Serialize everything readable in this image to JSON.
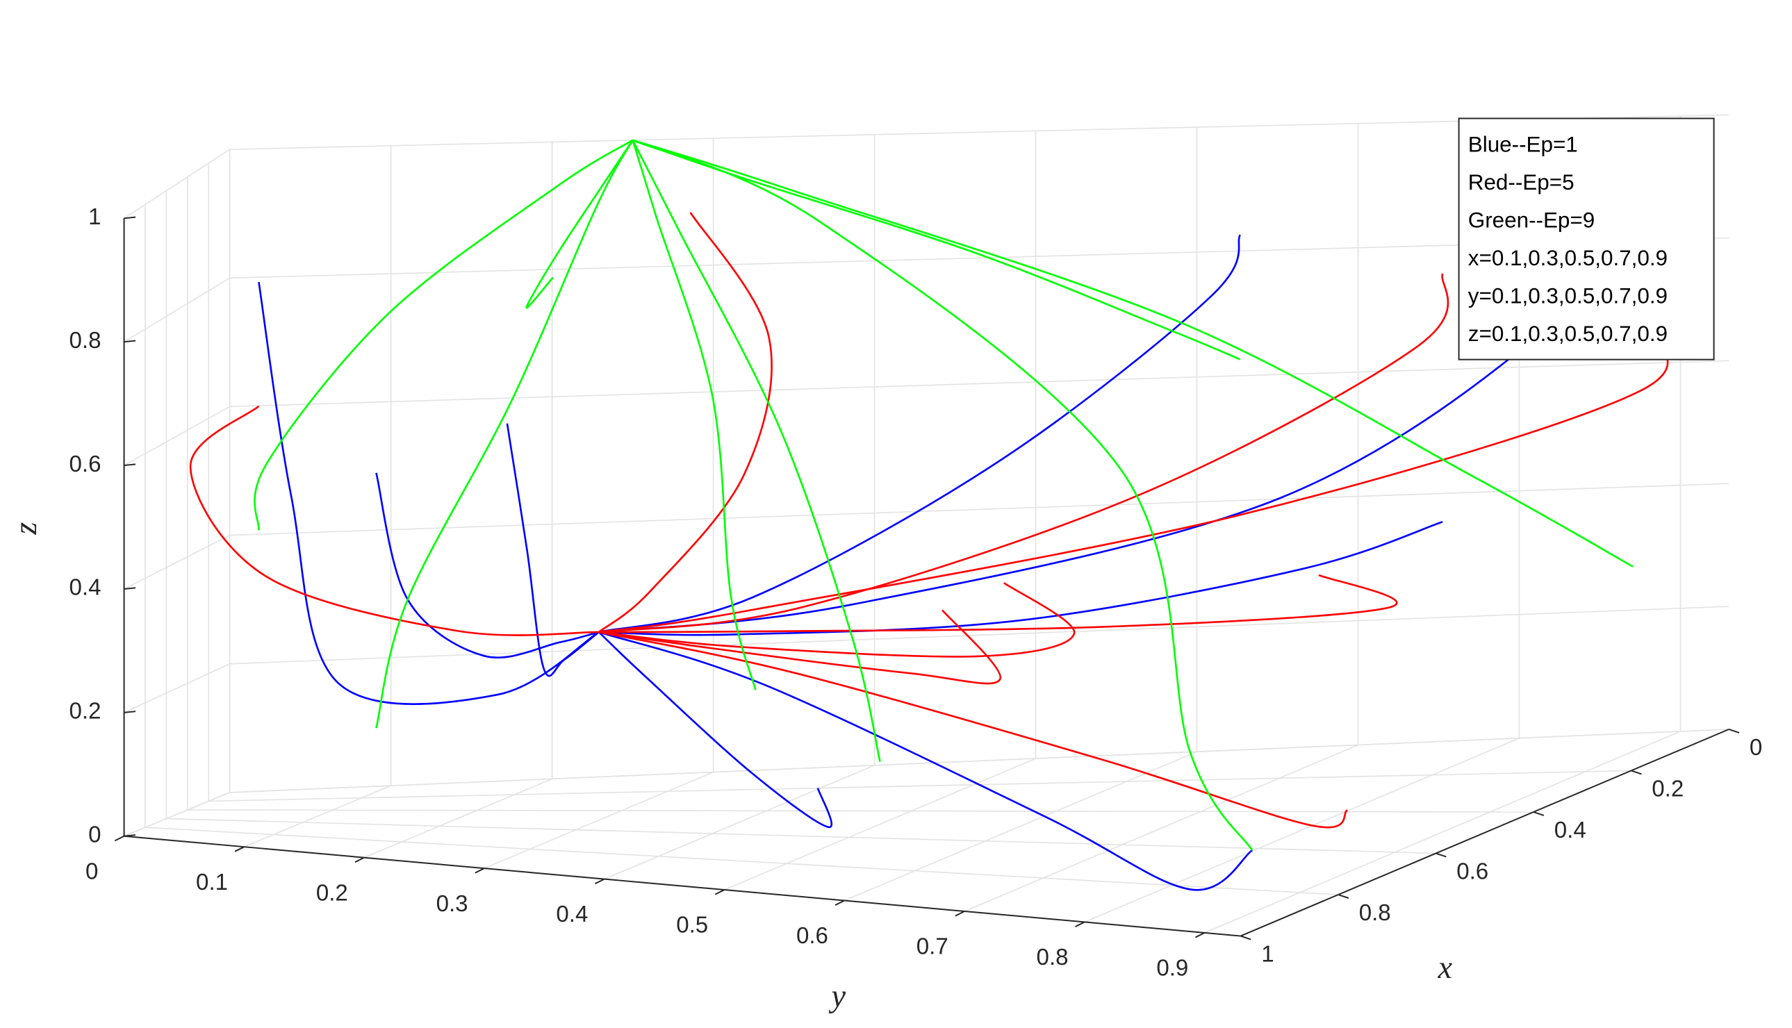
{
  "chart_data": {
    "type": "line3d",
    "xlabel": "x",
    "ylabel": "y",
    "zlabel": "z",
    "xlim": [
      0,
      1
    ],
    "ylim": [
      0,
      0.93
    ],
    "zlim": [
      0,
      1
    ],
    "xticks": [
      0,
      0.2,
      0.4,
      0.6,
      0.8,
      1
    ],
    "yticks": [
      0,
      0.1,
      0.2,
      0.3,
      0.4,
      0.5,
      0.6,
      0.7,
      0.8,
      0.9
    ],
    "zticks": [
      0,
      0.2,
      0.4,
      0.6,
      0.8,
      1
    ],
    "grid": true,
    "legend": "northeast",
    "series": [
      {
        "name": "Blue--Ep=1",
        "color": "#0000ff",
        "lines": [
          {
            "x": [
              0.9,
              0.85,
              0.8,
              0.65,
              0.5
            ],
            "y": [
              0.1,
              0.12,
              0.15,
              0.25,
              0.3
            ],
            "z": [
              0.9,
              0.55,
              0.25,
              0.22,
              0.3
            ]
          },
          {
            "x": [
              0.1,
              0.1,
              0.2,
              0.35,
              0.5
            ],
            "y": [
              0.9,
              0.85,
              0.7,
              0.45,
              0.3
            ],
            "z": [
              0.9,
              0.7,
              0.45,
              0.32,
              0.3
            ]
          },
          {
            "x": [
              0.9,
              0.9,
              0.8,
              0.65,
              0.5
            ],
            "y": [
              0.9,
              0.85,
              0.7,
              0.45,
              0.3
            ],
            "z": [
              0.1,
              0.03,
              0.1,
              0.25,
              0.3
            ]
          },
          {
            "x": [
              0.5,
              0.5,
              0.5,
              0.5,
              0.5
            ],
            "y": [
              0.9,
              0.8,
              0.6,
              0.4,
              0.3
            ],
            "z": [
              0.5,
              0.42,
              0.33,
              0.3,
              0.3
            ]
          },
          {
            "x": [
              0.1,
              0.1,
              0.2,
              0.35,
              0.5
            ],
            "y": [
              0.1,
              0.12,
              0.18,
              0.25,
              0.3
            ],
            "z": [
              0.5,
              0.3,
              0.22,
              0.26,
              0.3
            ]
          },
          {
            "x": [
              0.7,
              0.75,
              0.7,
              0.6,
              0.5
            ],
            "y": [
              0.5,
              0.52,
              0.45,
              0.35,
              0.3
            ],
            "z": [
              0.1,
              0.05,
              0.12,
              0.25,
              0.3
            ]
          },
          {
            "x": [
              0.3,
              0.3,
              0.35,
              0.45,
              0.5
            ],
            "y": [
              0.7,
              0.68,
              0.55,
              0.4,
              0.3
            ],
            "z": [
              0.9,
              0.8,
              0.55,
              0.35,
              0.3
            ]
          },
          {
            "x": [
              0.9,
              0.92,
              0.85,
              0.65,
              0.5
            ],
            "y": [
              0.3,
              0.32,
              0.32,
              0.3,
              0.3
            ],
            "z": [
              0.7,
              0.5,
              0.3,
              0.28,
              0.3
            ]
          }
        ]
      },
      {
        "name": "Red--Ep=5",
        "color": "#ff0000",
        "lines": [
          {
            "x": [
              0.1,
              0.15,
              0.3,
              0.45,
              0.5
            ],
            "y": [
              0.9,
              0.92,
              0.7,
              0.4,
              0.3
            ],
            "z": [
              0.7,
              0.6,
              0.45,
              0.33,
              0.3
            ]
          },
          {
            "x": [
              0.9,
              0.95,
              0.85,
              0.65,
              0.5
            ],
            "y": [
              0.1,
              0.05,
              0.1,
              0.22,
              0.3
            ],
            "z": [
              0.7,
              0.6,
              0.42,
              0.32,
              0.3
            ]
          },
          {
            "x": [
              0.5,
              0.55,
              0.55,
              0.52,
              0.5
            ],
            "y": [
              0.9,
              0.9,
              0.7,
              0.45,
              0.3
            ],
            "z": [
              0.9,
              0.8,
              0.55,
              0.35,
              0.3
            ]
          },
          {
            "x": [
              0.3,
              0.35,
              0.4,
              0.47,
              0.5
            ],
            "y": [
              0.5,
              0.55,
              0.5,
              0.38,
              0.3
            ],
            "z": [
              0.3,
              0.2,
              0.22,
              0.27,
              0.3
            ]
          },
          {
            "x": [
              0.7,
              0.72,
              0.65,
              0.55,
              0.5
            ],
            "y": [
              0.9,
              0.88,
              0.7,
              0.45,
              0.3
            ],
            "z": [
              0.1,
              0.08,
              0.15,
              0.25,
              0.3
            ]
          },
          {
            "x": [
              0.1,
              0.1,
              0.2,
              0.4,
              0.5
            ],
            "y": [
              0.3,
              0.35,
              0.35,
              0.32,
              0.3
            ],
            "z": [
              0.9,
              0.7,
              0.5,
              0.35,
              0.3
            ]
          },
          {
            "x": [
              0.9,
              0.88,
              0.8,
              0.6,
              0.5
            ],
            "y": [
              0.7,
              0.75,
              0.65,
              0.42,
              0.3
            ],
            "z": [
              0.5,
              0.42,
              0.35,
              0.3,
              0.3
            ]
          },
          {
            "x": [
              0.1,
              0.12,
              0.25,
              0.42,
              0.5
            ],
            "y": [
              0.7,
              0.75,
              0.6,
              0.4,
              0.3
            ],
            "z": [
              0.3,
              0.25,
              0.26,
              0.29,
              0.3
            ]
          }
        ]
      },
      {
        "name": "Green--Ep=9",
        "color": "#00ff00",
        "lines": [
          {
            "x": [
              0.9,
              0.9,
              0.6,
              0.2,
              0
            ],
            "y": [
              0.9,
              0.85,
              0.7,
              0.4,
              0.25
            ],
            "z": [
              0.1,
              0.25,
              0.6,
              0.9,
              1
            ]
          },
          {
            "x": [
              0.9,
              0.85,
              0.5,
              0.15,
              0
            ],
            "y": [
              0.1,
              0.1,
              0.15,
              0.22,
              0.25
            ],
            "z": [
              0.5,
              0.6,
              0.8,
              0.95,
              1
            ]
          },
          {
            "x": [
              0.1,
              0.1,
              0.05,
              0.02,
              0
            ],
            "y": [
              0.9,
              0.8,
              0.6,
              0.35,
              0.25
            ],
            "z": [
              0.3,
              0.45,
              0.7,
              0.92,
              1
            ]
          },
          {
            "x": [
              0.5,
              0.5,
              0.35,
              0.15,
              0
            ],
            "y": [
              0.5,
              0.48,
              0.4,
              0.3,
              0.25
            ],
            "z": [
              0.1,
              0.3,
              0.6,
              0.88,
              1
            ]
          },
          {
            "x": [
              0.7,
              0.7,
              0.5,
              0.2,
              0
            ],
            "y": [
              0.3,
              0.28,
              0.27,
              0.26,
              0.25
            ],
            "z": [
              0.9,
              0.85,
              0.9,
              0.97,
              1
            ]
          },
          {
            "x": [
              0.3,
              0.3,
              0.2,
              0.08,
              0
            ],
            "y": [
              0.7,
              0.65,
              0.5,
              0.33,
              0.25
            ],
            "z": [
              0.7,
              0.75,
              0.85,
              0.95,
              1
            ]
          },
          {
            "x": [
              0.9,
              0.9,
              0.6,
              0.25,
              0
            ],
            "y": [
              0.5,
              0.48,
              0.4,
              0.3,
              0.25
            ],
            "z": [
              0.3,
              0.45,
              0.7,
              0.92,
              1
            ]
          },
          {
            "x": [
              0.1,
              0.1,
              0.05,
              0.02,
              0
            ],
            "y": [
              0.1,
              0.12,
              0.18,
              0.23,
              0.25
            ],
            "z": [
              0.1,
              0.3,
              0.6,
              0.9,
              1
            ]
          }
        ]
      }
    ],
    "annotations": [
      "x=0.1,0.3,0.5,0.7,0.9",
      "y=0.1,0.3,0.5,0.7,0.9",
      "z=0.1,0.3,0.5,0.7,0.9"
    ]
  }
}
